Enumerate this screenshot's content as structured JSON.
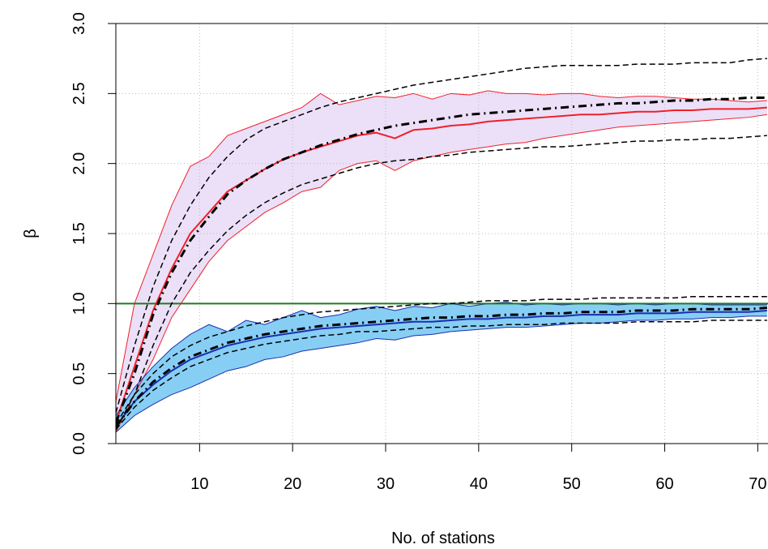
{
  "chart_data": {
    "type": "line",
    "xlabel": "No. of stations",
    "ylabel": "β",
    "xlim": [
      1,
      71.1
    ],
    "ylim": [
      0,
      3
    ],
    "xticks": [
      10,
      20,
      30,
      40,
      50,
      60,
      70
    ],
    "yticks": [
      {
        "value": 0,
        "label": "0.0"
      },
      0.5,
      {
        "value": 1,
        "label": "1.0"
      },
      1.5,
      {
        "value": 2,
        "label": "2.0"
      },
      2.5,
      {
        "value": 3,
        "label": "3.0"
      }
    ],
    "grid": true,
    "x": [
      1,
      3,
      5,
      7,
      9,
      11,
      13,
      15,
      17,
      19,
      21,
      23,
      25,
      27,
      29,
      31,
      33,
      35,
      37,
      39,
      41,
      43,
      45,
      47,
      49,
      51,
      53,
      55,
      57,
      59,
      61,
      63,
      65,
      67,
      69,
      71
    ],
    "bands": [
      {
        "fill": "#ebe0f7",
        "edge": "#f0202a",
        "upper": [
          0.3,
          1.0,
          1.35,
          1.7,
          1.98,
          2.05,
          2.2,
          2.25,
          2.3,
          2.35,
          2.4,
          2.5,
          2.42,
          2.45,
          2.48,
          2.47,
          2.5,
          2.46,
          2.5,
          2.49,
          2.52,
          2.5,
          2.5,
          2.49,
          2.5,
          2.5,
          2.48,
          2.47,
          2.48,
          2.48,
          2.47,
          2.46,
          2.46,
          2.45,
          2.44,
          2.45
        ],
        "lower": [
          0.08,
          0.35,
          0.6,
          0.9,
          1.1,
          1.3,
          1.45,
          1.55,
          1.65,
          1.72,
          1.8,
          1.83,
          1.95,
          2.0,
          2.02,
          1.95,
          2.02,
          2.05,
          2.08,
          2.1,
          2.12,
          2.14,
          2.15,
          2.18,
          2.2,
          2.22,
          2.24,
          2.26,
          2.27,
          2.28,
          2.29,
          2.3,
          2.31,
          2.32,
          2.33,
          2.35
        ]
      },
      {
        "fill": "#87cef5",
        "edge": "#1a2fb0",
        "upper": [
          0.2,
          0.4,
          0.55,
          0.68,
          0.78,
          0.85,
          0.8,
          0.88,
          0.85,
          0.9,
          0.95,
          0.9,
          0.92,
          0.96,
          0.98,
          0.95,
          0.98,
          0.97,
          1.0,
          0.98,
          1.0,
          1.01,
          0.99,
          1.0,
          0.99,
          1.0,
          1.0,
          0.99,
          1.0,
          0.99,
          1.0,
          1.0,
          0.99,
          0.99,
          0.99,
          0.99
        ],
        "lower": [
          0.08,
          0.2,
          0.28,
          0.35,
          0.4,
          0.46,
          0.52,
          0.55,
          0.6,
          0.62,
          0.66,
          0.68,
          0.7,
          0.72,
          0.75,
          0.74,
          0.77,
          0.78,
          0.8,
          0.81,
          0.82,
          0.83,
          0.83,
          0.84,
          0.85,
          0.86,
          0.86,
          0.87,
          0.88,
          0.88,
          0.89,
          0.89,
          0.9,
          0.9,
          0.91,
          0.91
        ]
      }
    ],
    "hlines": [
      {
        "y": 1,
        "color": "#217a21"
      }
    ],
    "series": [
      {
        "color": "#f0202a",
        "dash": "solid",
        "width": 2,
        "values": [
          0.15,
          0.55,
          0.95,
          1.25,
          1.5,
          1.65,
          1.8,
          1.88,
          1.96,
          2.03,
          2.08,
          2.12,
          2.16,
          2.2,
          2.22,
          2.18,
          2.24,
          2.25,
          2.27,
          2.28,
          2.3,
          2.31,
          2.32,
          2.33,
          2.34,
          2.35,
          2.35,
          2.36,
          2.37,
          2.37,
          2.38,
          2.38,
          2.39,
          2.39,
          2.39,
          2.4
        ]
      },
      {
        "color": "#1a2fb0",
        "dash": "solid",
        "width": 2,
        "values": [
          0.12,
          0.3,
          0.42,
          0.52,
          0.6,
          0.65,
          0.7,
          0.73,
          0.76,
          0.78,
          0.8,
          0.82,
          0.83,
          0.84,
          0.85,
          0.86,
          0.87,
          0.87,
          0.88,
          0.89,
          0.89,
          0.9,
          0.9,
          0.91,
          0.91,
          0.92,
          0.92,
          0.92,
          0.93,
          0.93,
          0.93,
          0.94,
          0.94,
          0.94,
          0.94,
          0.95
        ]
      },
      {
        "color": "#000000",
        "dash": "dashdot",
        "width": 3,
        "values": [
          0.15,
          0.5,
          0.92,
          1.22,
          1.45,
          1.62,
          1.78,
          1.88,
          1.96,
          2.03,
          2.08,
          2.13,
          2.17,
          2.21,
          2.24,
          2.27,
          2.29,
          2.31,
          2.33,
          2.35,
          2.36,
          2.37,
          2.38,
          2.39,
          2.4,
          2.41,
          2.42,
          2.43,
          2.43,
          2.44,
          2.45,
          2.45,
          2.46,
          2.46,
          2.47,
          2.47
        ]
      },
      {
        "color": "#000000",
        "dash": "dashed",
        "width": 1.5,
        "values": [
          0.22,
          0.7,
          1.12,
          1.45,
          1.7,
          1.9,
          2.05,
          2.17,
          2.25,
          2.3,
          2.35,
          2.4,
          2.44,
          2.47,
          2.5,
          2.53,
          2.56,
          2.58,
          2.6,
          2.62,
          2.64,
          2.66,
          2.68,
          2.69,
          2.7,
          2.7,
          2.7,
          2.7,
          2.71,
          2.71,
          2.71,
          2.72,
          2.72,
          2.72,
          2.74,
          2.75
        ]
      },
      {
        "color": "#000000",
        "dash": "dashed",
        "width": 1.5,
        "values": [
          0.1,
          0.35,
          0.7,
          1.0,
          1.22,
          1.38,
          1.52,
          1.63,
          1.72,
          1.79,
          1.85,
          1.89,
          1.93,
          1.97,
          2.0,
          2.02,
          2.03,
          2.05,
          2.06,
          2.08,
          2.09,
          2.1,
          2.11,
          2.12,
          2.12,
          2.13,
          2.14,
          2.15,
          2.16,
          2.16,
          2.17,
          2.17,
          2.18,
          2.18,
          2.19,
          2.2
        ]
      },
      {
        "color": "#000000",
        "dash": "dashdot",
        "width": 3,
        "values": [
          0.12,
          0.3,
          0.44,
          0.54,
          0.62,
          0.67,
          0.72,
          0.75,
          0.78,
          0.8,
          0.82,
          0.84,
          0.85,
          0.86,
          0.87,
          0.88,
          0.89,
          0.9,
          0.9,
          0.91,
          0.91,
          0.92,
          0.92,
          0.93,
          0.93,
          0.94,
          0.94,
          0.94,
          0.95,
          0.95,
          0.95,
          0.96,
          0.96,
          0.96,
          0.96,
          0.97
        ]
      },
      {
        "color": "#000000",
        "dash": "dashed",
        "width": 1.5,
        "values": [
          0.14,
          0.35,
          0.5,
          0.62,
          0.7,
          0.76,
          0.8,
          0.84,
          0.87,
          0.9,
          0.92,
          0.94,
          0.95,
          0.96,
          0.97,
          0.98,
          0.99,
          1.0,
          1.0,
          1.01,
          1.02,
          1.02,
          1.02,
          1.03,
          1.03,
          1.03,
          1.04,
          1.04,
          1.04,
          1.04,
          1.04,
          1.05,
          1.05,
          1.05,
          1.05,
          1.05
        ]
      },
      {
        "color": "#000000",
        "dash": "dashed",
        "width": 1.5,
        "values": [
          0.1,
          0.26,
          0.38,
          0.47,
          0.55,
          0.6,
          0.65,
          0.68,
          0.71,
          0.73,
          0.75,
          0.77,
          0.78,
          0.8,
          0.8,
          0.81,
          0.82,
          0.83,
          0.83,
          0.84,
          0.84,
          0.85,
          0.85,
          0.85,
          0.86,
          0.86,
          0.86,
          0.86,
          0.87,
          0.87,
          0.87,
          0.87,
          0.88,
          0.88,
          0.88,
          0.88
        ]
      }
    ]
  }
}
